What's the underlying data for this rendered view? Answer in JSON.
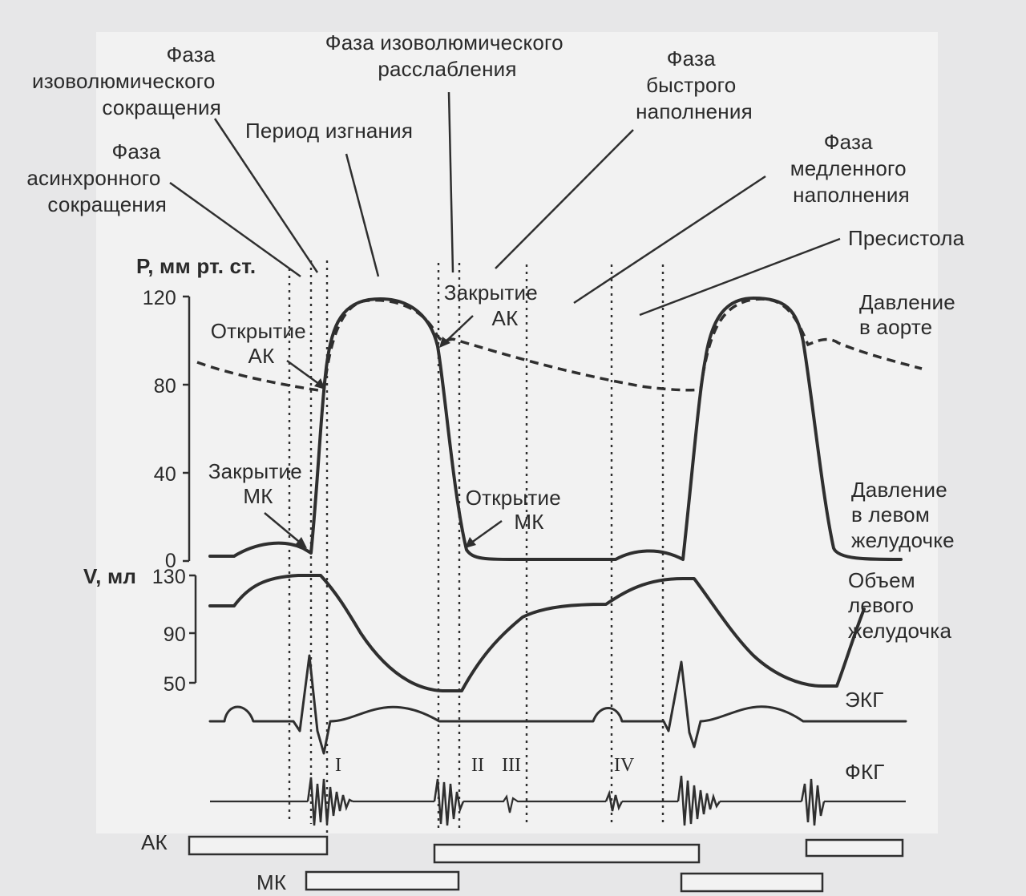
{
  "labels": {
    "isovol_contraction": [
      "Фаза",
      "изоволюмического",
      "сокращения"
    ],
    "isovol_relaxation": [
      "Фаза изоволюмического",
      "расслабления"
    ],
    "ejection": "Период изгнания",
    "rapid_filling": [
      "Фаза",
      "быстрого",
      "наполнения"
    ],
    "async_contraction": [
      "Фаза",
      "асинхронного",
      "сокращения"
    ],
    "slow_filling": [
      "Фаза",
      "медленного",
      "наполнения"
    ],
    "presystole": "Пресистола",
    "aortic_pressure": [
      "Давление",
      "в аорте"
    ],
    "lv_pressure": [
      "Давление",
      "в левом",
      "желудочке"
    ],
    "lv_volume": [
      "Объем",
      "левого",
      "желудочка"
    ],
    "ecg": "ЭКГ",
    "pcg": "ФКГ",
    "av_open": [
      "Открытие",
      "АК"
    ],
    "av_close": [
      "Закрытие",
      "АК"
    ],
    "mv_close": [
      "Закрытие",
      "МК"
    ],
    "mv_open": [
      "Открытие",
      "МК"
    ],
    "bar_av": "АК",
    "bar_mv": "МК",
    "tone_1": "I",
    "tone_2": "II",
    "tone_3": "III",
    "tone_4": "IV"
  },
  "axes": {
    "pressure": {
      "label": "P, мм рт. ст.",
      "ticks": [
        "120",
        "80",
        "40",
        "0"
      ]
    },
    "volume": {
      "label": "V, мл",
      "ticks": [
        "130",
        "90",
        "50"
      ]
    }
  }
}
